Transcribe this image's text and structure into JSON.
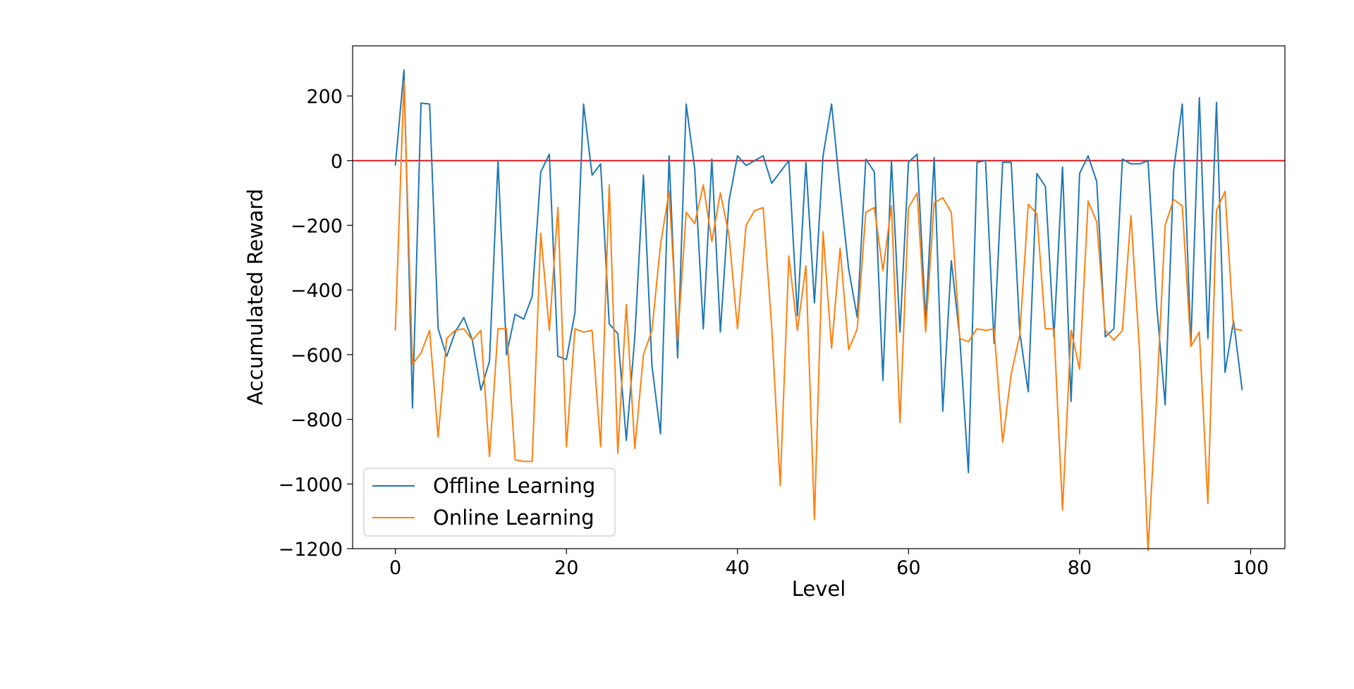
{
  "chart_data": {
    "type": "line",
    "title": "",
    "xlabel": "Level",
    "ylabel": "Accumulated Reward",
    "xlim": [
      -5,
      104
    ],
    "ylim": [
      -1200,
      355
    ],
    "x_ticks": [
      0,
      20,
      40,
      60,
      80,
      100
    ],
    "y_ticks": [
      200,
      0,
      -200,
      -400,
      -600,
      -800,
      -1000,
      -1200
    ],
    "x_tick_labels": [
      "0",
      "20",
      "40",
      "60",
      "80",
      "100"
    ],
    "y_tick_labels": [
      "200",
      "0",
      "−200",
      "−400",
      "−600",
      "−800",
      "−1000",
      "−1200"
    ],
    "grid": false,
    "legend_position": "lower-left",
    "reference_line": {
      "y": 0,
      "color": "#e31a1c"
    },
    "series": [
      {
        "name": "Offline Learning",
        "color": "#1f77b4",
        "x": [
          0,
          1,
          2,
          3,
          4,
          5,
          6,
          7,
          8,
          9,
          10,
          11,
          12,
          13,
          14,
          15,
          16,
          17,
          18,
          19,
          20,
          21,
          22,
          23,
          24,
          25,
          26,
          27,
          28,
          29,
          30,
          31,
          32,
          33,
          34,
          35,
          36,
          37,
          38,
          39,
          40,
          41,
          42,
          43,
          44,
          45,
          46,
          47,
          48,
          49,
          50,
          51,
          52,
          53,
          54,
          55,
          56,
          57,
          58,
          59,
          60,
          61,
          62,
          63,
          64,
          65,
          66,
          67,
          68,
          69,
          70,
          71,
          72,
          73,
          74,
          75,
          76,
          77,
          78,
          79,
          80,
          81,
          82,
          83,
          84,
          85,
          86,
          87,
          88,
          89,
          90,
          91,
          92,
          93,
          94,
          95,
          96,
          97,
          98,
          99
        ],
        "values": [
          -15,
          280,
          -765,
          178,
          175,
          -520,
          -605,
          -530,
          -485,
          -555,
          -710,
          -620,
          0,
          -600,
          -475,
          -490,
          -420,
          -35,
          20,
          -605,
          -615,
          -470,
          175,
          -45,
          -10,
          -505,
          -535,
          -865,
          -545,
          -45,
          -635,
          -845,
          15,
          -610,
          175,
          -25,
          -520,
          5,
          -530,
          -125,
          15,
          -15,
          0,
          15,
          -70,
          -35,
          0,
          -480,
          -5,
          -440,
          15,
          175,
          -90,
          -335,
          -485,
          5,
          -35,
          -680,
          0,
          -530,
          -5,
          20,
          -495,
          10,
          -775,
          -310,
          -550,
          -965,
          -5,
          0,
          -565,
          -5,
          -5,
          -530,
          -715,
          -40,
          -80,
          -545,
          -20,
          -745,
          -40,
          15,
          -65,
          -545,
          -520,
          5,
          -10,
          -10,
          0,
          -445,
          -755,
          -30,
          175,
          -570,
          195,
          -550,
          180,
          -655,
          -495,
          -710
        ]
      },
      {
        "name": "Online Learning",
        "color": "#ff7f0e",
        "x": [
          0,
          1,
          2,
          3,
          4,
          5,
          6,
          7,
          8,
          9,
          10,
          11,
          12,
          13,
          14,
          15,
          16,
          17,
          18,
          19,
          20,
          21,
          22,
          23,
          24,
          25,
          26,
          27,
          28,
          29,
          30,
          31,
          32,
          33,
          34,
          35,
          36,
          37,
          38,
          39,
          40,
          41,
          42,
          43,
          44,
          45,
          46,
          47,
          48,
          49,
          50,
          51,
          52,
          53,
          54,
          55,
          56,
          57,
          58,
          59,
          60,
          61,
          62,
          63,
          64,
          65,
          66,
          67,
          68,
          69,
          70,
          71,
          72,
          73,
          74,
          75,
          76,
          77,
          78,
          79,
          80,
          81,
          82,
          83,
          84,
          85,
          86,
          87,
          88,
          89,
          90,
          91,
          92,
          93,
          94,
          95,
          96,
          97,
          98,
          99
        ],
        "values": [
          -525,
          245,
          -630,
          -595,
          -525,
          -855,
          -550,
          -525,
          -520,
          -555,
          -525,
          -915,
          -520,
          -520,
          -925,
          -930,
          -930,
          -225,
          -525,
          -145,
          -885,
          -520,
          -530,
          -525,
          -885,
          -75,
          -905,
          -445,
          -890,
          -600,
          -525,
          -260,
          -95,
          -555,
          -160,
          -195,
          -75,
          -250,
          -100,
          -230,
          -520,
          -200,
          -155,
          -145,
          -515,
          -1005,
          -295,
          -525,
          -325,
          -1110,
          -220,
          -580,
          -270,
          -585,
          -520,
          -160,
          -145,
          -340,
          -140,
          -810,
          -145,
          -100,
          -530,
          -130,
          -115,
          -160,
          -550,
          -560,
          -520,
          -525,
          -520,
          -870,
          -660,
          -540,
          -135,
          -165,
          -520,
          -520,
          -1080,
          -525,
          -645,
          -125,
          -190,
          -525,
          -555,
          -525,
          -170,
          -585,
          -1205,
          -735,
          -200,
          -120,
          -140,
          -575,
          -530,
          -1060,
          -155,
          -95,
          -520,
          -525
        ]
      }
    ]
  }
}
